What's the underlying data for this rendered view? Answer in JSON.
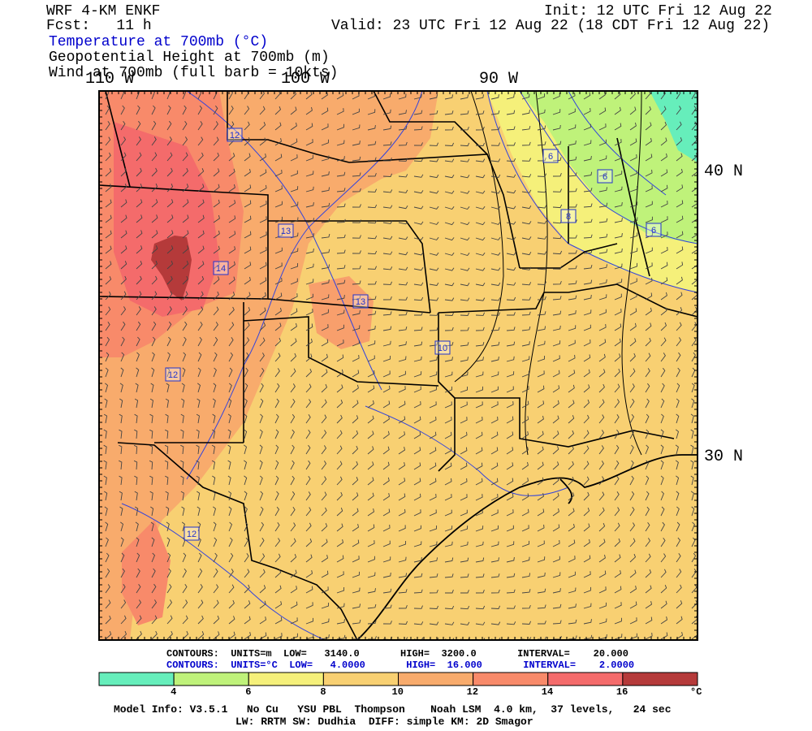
{
  "header": {
    "model": "WRF 4-KM ENKF",
    "fcst": "Fcst:   11 h",
    "init": "Init: 12 UTC Fri 12 Aug 22",
    "valid": "Valid: 23 UTC Fri 12 Aug 22 (18 CDT Fri 12 Aug 22)",
    "field1": "Temperature at 700mb (°C)",
    "field2": "Geopotential Height at 700mb (m)",
    "field3": "Wind at 700mb (full barb = 10kts)"
  },
  "axes": {
    "lon_labels": [
      "110 W",
      "100 W",
      "90 W"
    ],
    "lat_labels": [
      "40 N",
      "30 N"
    ]
  },
  "contour_labels": [
    "12",
    "13",
    "14",
    "13",
    "12",
    "12",
    "10",
    "6",
    "6",
    "8",
    "6"
  ],
  "contours_info": {
    "line1": "CONTOURS:  UNITS=m  LOW=   3140.0       HIGH=  3200.0       INTERVAL=    20.000",
    "line2": "CONTOURS:  UNITS=°C  LOW=   4.0000       HIGH=  16.000       INTERVAL=    2.0000"
  },
  "colorbar": {
    "ticks": [
      "4",
      "6",
      "8",
      "10",
      "12",
      "14",
      "16"
    ],
    "unit": "°C",
    "colors": [
      "#66eebb",
      "#bff27a",
      "#f5f07a",
      "#f8d072",
      "#f8ab6c",
      "#f88a6a",
      "#f46b6b",
      "#b53a3a"
    ]
  },
  "footer": {
    "line1": "Model Info: V3.5.1   No Cu   YSU PBL  Thompson    Noah LSM  4.0 km,  37 levels,   24 sec",
    "line2": "LW: RRTM SW: Dudhia  DIFF: simple KM: 2D Smagor"
  }
}
